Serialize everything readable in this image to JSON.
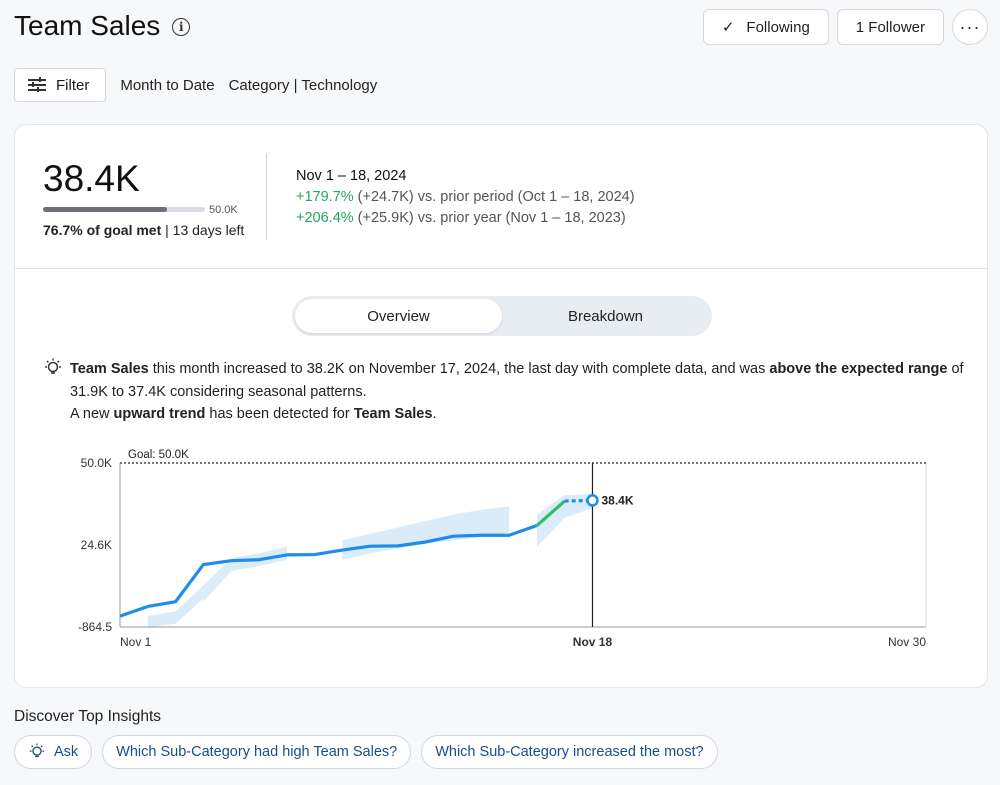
{
  "header": {
    "title": "Team Sales",
    "info_icon": "info-icon",
    "following_label": "Following",
    "follower_label": "1 Follower",
    "more_label": "···"
  },
  "filters": {
    "filter_label": "Filter",
    "chips": [
      "Month to Date",
      "Category | Technology"
    ]
  },
  "kpi": {
    "value": "38.4K",
    "goal_label": "50.0K",
    "progress": 0.767,
    "goal_met": "76.7% of goal met",
    "days_left": "| 13 days left",
    "period": "Nov 1 – 18, 2024",
    "prior_period_change": "+179.7%",
    "prior_period_rest": " (+24.7K) vs. prior period (Oct 1 – 18, 2024)",
    "prior_year_change": "+206.4%",
    "prior_year_rest": " (+25.9K) vs. prior year (Nov 1 – 18, 2023)"
  },
  "tabs": [
    {
      "label": "Overview",
      "active": true
    },
    {
      "label": "Breakdown",
      "active": false
    }
  ],
  "insight": {
    "s1": "Team Sales",
    "s2": " this month increased to 38.2K on November 17, 2024, the last day with complete data, and was ",
    "s3": "above the expected range",
    "s4": " of 31.9K to 37.4K considering seasonal patterns.",
    "s5": "A new ",
    "s6": "upward trend",
    "s7": " has been detected for ",
    "s8": "Team Sales",
    "s9": "."
  },
  "chart_data": {
    "type": "line",
    "title": "",
    "xlabel": "",
    "ylabel": "",
    "x_ticks": [
      "Nov 1",
      "Nov 18",
      "Nov 30"
    ],
    "y_ticks": [
      "50.0K",
      "24.6K",
      "-864.5"
    ],
    "ylim": [
      -864.5,
      50000
    ],
    "x_range_days": [
      1,
      30
    ],
    "goal": {
      "label": "Goal: 50.0K",
      "value": 50000
    },
    "current_day": 18,
    "current_label": "38.4K",
    "series": [
      {
        "values": [
          {
            "x": 1,
            "y": 2500
          },
          {
            "x": 2,
            "y": 5500
          },
          {
            "x": 3,
            "y": 7000
          },
          {
            "x": 4,
            "y": 18500
          },
          {
            "x": 5,
            "y": 19700
          },
          {
            "x": 6,
            "y": 20000
          },
          {
            "x": 7,
            "y": 21500
          },
          {
            "x": 8,
            "y": 21600
          },
          {
            "x": 9,
            "y": 23000
          },
          {
            "x": 10,
            "y": 24200
          },
          {
            "x": 11,
            "y": 24300
          },
          {
            "x": 12,
            "y": 25500
          },
          {
            "x": 13,
            "y": 27300
          },
          {
            "x": 14,
            "y": 27600
          },
          {
            "x": 15,
            "y": 27600
          },
          {
            "x": 16,
            "y": 30600
          },
          {
            "x": 17,
            "y": 38200
          },
          {
            "x": 18,
            "y": 38400
          }
        ]
      }
    ],
    "colors": {
      "line": "#1f8ceb",
      "trend": "#2fbe67",
      "band": "#d6e9f8",
      "axis": "#333333"
    }
  },
  "discover": {
    "title": "Discover Top Insights",
    "pills": [
      "Ask",
      "Which Sub-Category had high Team Sales?",
      "Which Sub-Category increased the most?"
    ]
  }
}
